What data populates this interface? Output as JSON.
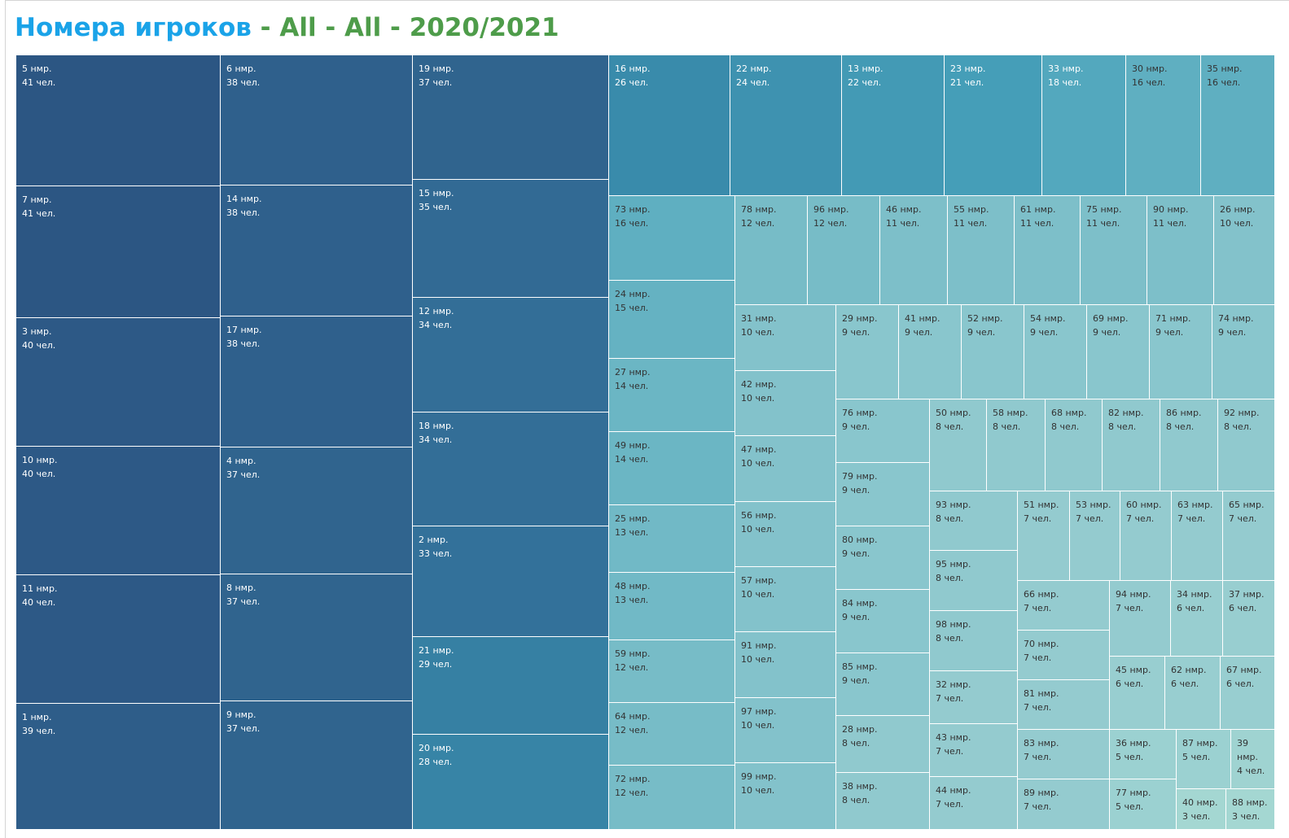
{
  "header": {
    "title_main": "Номера игроков",
    "title_filters": " - All - All - 2020/2021"
  },
  "colors": {
    "title_main": "#1aa3e8",
    "title_filters": "#4e9c4a",
    "dark": "#2c5683",
    "light": "#a4d7d2"
  },
  "chart_data": {
    "type": "treemap",
    "title": "Номера игроков - All - All - 2020/2021",
    "items": [
      {
        "label": "5 нмр.",
        "value_label": "41 чел.",
        "value": 41
      },
      {
        "label": "7 нмр.",
        "value_label": "41 чел.",
        "value": 41
      },
      {
        "label": "3 нмр.",
        "value_label": "40 чел.",
        "value": 40
      },
      {
        "label": "10 нмр.",
        "value_label": "40 чел.",
        "value": 40
      },
      {
        "label": "11 нмр.",
        "value_label": "40 чел.",
        "value": 40
      },
      {
        "label": "1 нмр.",
        "value_label": "39 чел.",
        "value": 39
      },
      {
        "label": "6 нмр.",
        "value_label": "38 чел.",
        "value": 38
      },
      {
        "label": "14 нмр.",
        "value_label": "38 чел.",
        "value": 38
      },
      {
        "label": "17 нмр.",
        "value_label": "38 чел.",
        "value": 38
      },
      {
        "label": "4 нмр.",
        "value_label": "37 чел.",
        "value": 37
      },
      {
        "label": "8 нмр.",
        "value_label": "37 чел.",
        "value": 37
      },
      {
        "label": "9 нмр.",
        "value_label": "37 чел.",
        "value": 37
      },
      {
        "label": "19 нмр.",
        "value_label": "37 чел.",
        "value": 37
      },
      {
        "label": "15 нмр.",
        "value_label": "35 чел.",
        "value": 35
      },
      {
        "label": "12 нмр.",
        "value_label": "34 чел.",
        "value": 34
      },
      {
        "label": "18 нмр.",
        "value_label": "34 чел.",
        "value": 34
      },
      {
        "label": "2 нмр.",
        "value_label": "33 чел.",
        "value": 33
      },
      {
        "label": "21 нмр.",
        "value_label": "29 чел.",
        "value": 29
      },
      {
        "label": "20 нмр.",
        "value_label": "28 чел.",
        "value": 28
      },
      {
        "label": "16 нмр.",
        "value_label": "26 чел.",
        "value": 26
      },
      {
        "label": "22 нмр.",
        "value_label": "24 чел.",
        "value": 24
      },
      {
        "label": "13 нмр.",
        "value_label": "22 чел.",
        "value": 22
      },
      {
        "label": "23 нмр.",
        "value_label": "21 чел.",
        "value": 21
      },
      {
        "label": "33 нмр.",
        "value_label": "18 чел.",
        "value": 18
      },
      {
        "label": "30 нмр.",
        "value_label": "16 чел.",
        "value": 16
      },
      {
        "label": "35 нмр.",
        "value_label": "16 чел.",
        "value": 16
      },
      {
        "label": "73 нмр.",
        "value_label": "16 чел.",
        "value": 16
      },
      {
        "label": "24 нмр.",
        "value_label": "15 чел.",
        "value": 15
      },
      {
        "label": "27 нмр.",
        "value_label": "14 чел.",
        "value": 14
      },
      {
        "label": "49 нмр.",
        "value_label": "14 чел.",
        "value": 14
      },
      {
        "label": "25 нмр.",
        "value_label": "13 чел.",
        "value": 13
      },
      {
        "label": "48 нмр.",
        "value_label": "13 чел.",
        "value": 13
      },
      {
        "label": "59 нмр.",
        "value_label": "12 чел.",
        "value": 12
      },
      {
        "label": "64 нмр.",
        "value_label": "12 чел.",
        "value": 12
      },
      {
        "label": "72 нмр.",
        "value_label": "12 чел.",
        "value": 12
      },
      {
        "label": "78 нмр.",
        "value_label": "12 чел.",
        "value": 12
      },
      {
        "label": "96 нмр.",
        "value_label": "12 чел.",
        "value": 12
      },
      {
        "label": "46 нмр.",
        "value_label": "11 чел.",
        "value": 11
      },
      {
        "label": "55 нмр.",
        "value_label": "11 чел.",
        "value": 11
      },
      {
        "label": "61 нмр.",
        "value_label": "11 чел.",
        "value": 11
      },
      {
        "label": "75 нмр.",
        "value_label": "11 чел.",
        "value": 11
      },
      {
        "label": "90 нмр.",
        "value_label": "11 чел.",
        "value": 11
      },
      {
        "label": "26 нмр.",
        "value_label": "10 чел.",
        "value": 10
      },
      {
        "label": "31 нмр.",
        "value_label": "10 чел.",
        "value": 10
      },
      {
        "label": "42 нмр.",
        "value_label": "10 чел.",
        "value": 10
      },
      {
        "label": "47 нмр.",
        "value_label": "10 чел.",
        "value": 10
      },
      {
        "label": "56 нмр.",
        "value_label": "10 чел.",
        "value": 10
      },
      {
        "label": "57 нмр.",
        "value_label": "10 чел.",
        "value": 10
      },
      {
        "label": "91 нмр.",
        "value_label": "10 чел.",
        "value": 10
      },
      {
        "label": "97 нмр.",
        "value_label": "10 чел.",
        "value": 10
      },
      {
        "label": "99 нмр.",
        "value_label": "10 чел.",
        "value": 10
      },
      {
        "label": "29 нмр.",
        "value_label": "9 чел.",
        "value": 9
      },
      {
        "label": "41 нмр.",
        "value_label": "9 чел.",
        "value": 9
      },
      {
        "label": "52 нмр.",
        "value_label": "9 чел.",
        "value": 9
      },
      {
        "label": "54 нмр.",
        "value_label": "9 чел.",
        "value": 9
      },
      {
        "label": "69 нмр.",
        "value_label": "9 чел.",
        "value": 9
      },
      {
        "label": "71 нмр.",
        "value_label": "9 чел.",
        "value": 9
      },
      {
        "label": "74 нмр.",
        "value_label": "9 чел.",
        "value": 9
      },
      {
        "label": "76 нмр.",
        "value_label": "9 чел.",
        "value": 9
      },
      {
        "label": "79 нмр.",
        "value_label": "9 чел.",
        "value": 9
      },
      {
        "label": "80 нмр.",
        "value_label": "9 чел.",
        "value": 9
      },
      {
        "label": "84 нмр.",
        "value_label": "9 чел.",
        "value": 9
      },
      {
        "label": "85 нмр.",
        "value_label": "9 чел.",
        "value": 9
      },
      {
        "label": "28 нмр.",
        "value_label": "8 чел.",
        "value": 8
      },
      {
        "label": "38 нмр.",
        "value_label": "8 чел.",
        "value": 8
      },
      {
        "label": "50 нмр.",
        "value_label": "8 чел.",
        "value": 8
      },
      {
        "label": "58 нмр.",
        "value_label": "8 чел.",
        "value": 8
      },
      {
        "label": "68 нмр.",
        "value_label": "8 чел.",
        "value": 8
      },
      {
        "label": "82 нмр.",
        "value_label": "8 чел.",
        "value": 8
      },
      {
        "label": "86 нмр.",
        "value_label": "8 чел.",
        "value": 8
      },
      {
        "label": "92 нмр.",
        "value_label": "8 чел.",
        "value": 8
      },
      {
        "label": "93 нмр.",
        "value_label": "8 чел.",
        "value": 8
      },
      {
        "label": "95 нмр.",
        "value_label": "8 чел.",
        "value": 8
      },
      {
        "label": "98 нмр.",
        "value_label": "8 чел.",
        "value": 8
      },
      {
        "label": "32 нмр.",
        "value_label": "7 чел.",
        "value": 7
      },
      {
        "label": "43 нмр.",
        "value_label": "7 чел.",
        "value": 7
      },
      {
        "label": "44 нмр.",
        "value_label": "7 чел.",
        "value": 7
      },
      {
        "label": "51 нмр.",
        "value_label": "7 чел.",
        "value": 7
      },
      {
        "label": "53 нмр.",
        "value_label": "7 чел.",
        "value": 7
      },
      {
        "label": "60 нмр.",
        "value_label": "7 чел.",
        "value": 7
      },
      {
        "label": "63 нмр.",
        "value_label": "7 чел.",
        "value": 7
      },
      {
        "label": "65 нмр.",
        "value_label": "7 чел.",
        "value": 7
      },
      {
        "label": "66 нмр.",
        "value_label": "7 чел.",
        "value": 7
      },
      {
        "label": "70 нмр.",
        "value_label": "7 чел.",
        "value": 7
      },
      {
        "label": "81 нмр.",
        "value_label": "7 чел.",
        "value": 7
      },
      {
        "label": "83 нмр.",
        "value_label": "7 чел.",
        "value": 7
      },
      {
        "label": "89 нмр.",
        "value_label": "7 чел.",
        "value": 7
      },
      {
        "label": "94 нмр.",
        "value_label": "7 чел.",
        "value": 7
      },
      {
        "label": "34 нмр.",
        "value_label": "6 чел.",
        "value": 6
      },
      {
        "label": "37 нмр.",
        "value_label": "6 чел.",
        "value": 6
      },
      {
        "label": "45 нмр.",
        "value_label": "6 чел.",
        "value": 6
      },
      {
        "label": "62 нмр.",
        "value_label": "6 чел.",
        "value": 6
      },
      {
        "label": "67 нмр.",
        "value_label": "6 чел.",
        "value": 6
      },
      {
        "label": "36 нмр.",
        "value_label": "5 чел.",
        "value": 5
      },
      {
        "label": "77 нмр.",
        "value_label": "5 чел.",
        "value": 5
      },
      {
        "label": "87 нмр.",
        "value_label": "5 чел.",
        "value": 5
      },
      {
        "label": "39 нмр.",
        "value_label": "4 чел.",
        "value": 4
      },
      {
        "label": "40 нмр.",
        "value_label": "3 чел.",
        "value": 3
      },
      {
        "label": "88 нмр.",
        "value_label": "3 чел.",
        "value": 3
      }
    ]
  }
}
